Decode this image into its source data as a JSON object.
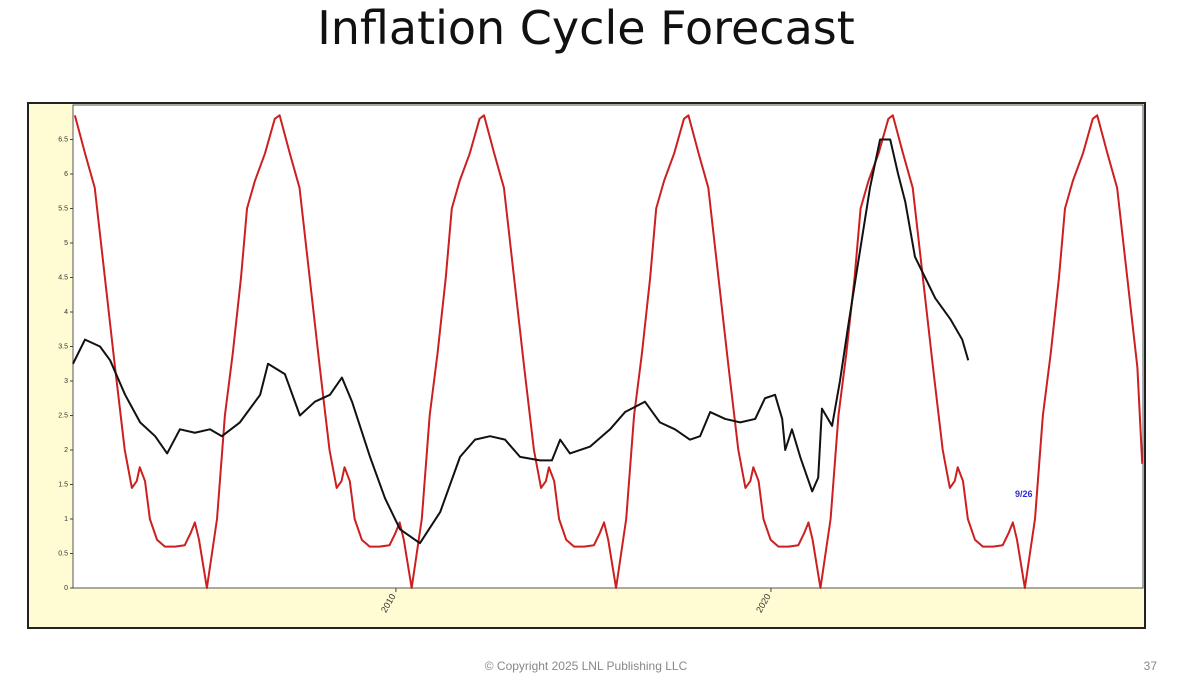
{
  "chart_data": {
    "type": "line",
    "title": "Inflation Cycle Forecast",
    "footer": "© Copyright 2025 LNL Publishing LLC",
    "page_number": "37",
    "annotation": "9/26",
    "xlim": [
      2001.39,
      2029.92
    ],
    "xticks": [
      2010,
      2020
    ],
    "ylim": [
      0,
      7
    ],
    "yticks": [
      0,
      0.5,
      1,
      1.5,
      2,
      2.5,
      3,
      3.5,
      4,
      4.5,
      5,
      5.5,
      6,
      6.5
    ],
    "series": [
      {
        "color": "#cc1f1f",
        "x": [
          2001.44,
          2001.71,
          2001.97,
          2002.24,
          2002.51,
          2002.77,
          2002.96,
          2003.09,
          2003.17,
          2003.31,
          2003.44,
          2003.63,
          2003.84,
          2004.11,
          2004.37,
          2004.53,
          2004.64,
          2004.75,
          2004.96,
          2005.23,
          2005.44,
          2005.65,
          2005.87,
          2006.03,
          2006.24,
          2006.51,
          2006.77,
          2006.9,
          2007.17,
          2007.43,
          2007.7,
          2007.97,
          2008.23,
          2008.42,
          2008.55,
          2008.63,
          2008.77,
          2008.9,
          2009.09,
          2009.3,
          2009.57,
          2009.83,
          2009.99,
          2010.1,
          2010.21,
          2010.42,
          2010.69,
          2010.9,
          2011.11,
          2011.33,
          2011.49,
          2011.7,
          2011.97,
          2012.23,
          2012.35,
          2012.62,
          2012.88,
          2013.15,
          2013.42,
          2013.68,
          2013.87,
          2014.0,
          2014.08,
          2014.22,
          2014.35,
          2014.54,
          2014.75,
          2015.02,
          2015.28,
          2015.44,
          2015.55,
          2015.66,
          2015.87,
          2016.14,
          2016.35,
          2016.56,
          2016.78,
          2016.94,
          2017.15,
          2017.42,
          2017.68,
          2017.8,
          2018.07,
          2018.33,
          2018.6,
          2018.87,
          2019.13,
          2019.32,
          2019.45,
          2019.53,
          2019.67,
          2019.8,
          2019.99,
          2020.2,
          2020.47,
          2020.73,
          2020.89,
          2021.0,
          2021.11,
          2021.32,
          2021.59,
          2021.8,
          2022.01,
          2022.23,
          2022.39,
          2022.6,
          2022.87,
          2023.13,
          2023.25,
          2023.52,
          2023.78,
          2024.05,
          2024.32,
          2024.58,
          2024.77,
          2024.9,
          2024.98,
          2025.12,
          2025.25,
          2025.44,
          2025.65,
          2025.92,
          2026.18,
          2026.34,
          2026.45,
          2026.56,
          2026.77,
          2027.04,
          2027.25,
          2027.46,
          2027.68,
          2027.84,
          2028.05,
          2028.32,
          2028.58,
          2028.7,
          2028.97,
          2029.23,
          2029.5,
          2029.77,
          2029.9
        ],
        "values": [
          6.85,
          6.3,
          5.8,
          4.5,
          3.2,
          2.0,
          1.45,
          1.55,
          1.75,
          1.55,
          1.0,
          0.7,
          0.6,
          0.6,
          0.62,
          0.8,
          0.95,
          0.7,
          0.0,
          1.0,
          2.5,
          3.4,
          4.5,
          5.5,
          5.9,
          6.3,
          6.8,
          6.85,
          6.3,
          5.8,
          4.5,
          3.2,
          2.0,
          1.45,
          1.55,
          1.75,
          1.55,
          1.0,
          0.7,
          0.6,
          0.6,
          0.62,
          0.8,
          0.95,
          0.7,
          0.0,
          1.0,
          2.5,
          3.4,
          4.5,
          5.5,
          5.9,
          6.3,
          6.8,
          6.85,
          6.3,
          5.8,
          4.5,
          3.2,
          2.0,
          1.45,
          1.55,
          1.75,
          1.55,
          1.0,
          0.7,
          0.6,
          0.6,
          0.62,
          0.8,
          0.95,
          0.7,
          0.0,
          1.0,
          2.5,
          3.4,
          4.5,
          5.5,
          5.9,
          6.3,
          6.8,
          6.85,
          6.3,
          5.8,
          4.5,
          3.2,
          2.0,
          1.45,
          1.55,
          1.75,
          1.55,
          1.0,
          0.7,
          0.6,
          0.6,
          0.62,
          0.8,
          0.95,
          0.7,
          0.0,
          1.0,
          2.5,
          3.4,
          4.5,
          5.5,
          5.9,
          6.3,
          6.8,
          6.85,
          6.3,
          5.8,
          4.5,
          3.2,
          2.0,
          1.45,
          1.55,
          1.75,
          1.55,
          1.0,
          0.7,
          0.6,
          0.6,
          0.62,
          0.8,
          0.95,
          0.7,
          0.0,
          1.0,
          2.5,
          3.4,
          4.5,
          5.5,
          5.9,
          6.3,
          6.8,
          6.85,
          6.3,
          5.8,
          4.5,
          3.2,
          1.8
        ]
      },
      {
        "color": "#111111",
        "x": [
          2001.39,
          2001.71,
          2002.11,
          2002.38,
          2002.78,
          2003.18,
          2003.58,
          2003.9,
          2004.24,
          2004.64,
          2005.04,
          2005.36,
          2005.84,
          2006.38,
          2006.59,
          2007.04,
          2007.44,
          2007.84,
          2008.24,
          2008.56,
          2008.83,
          2009.31,
          2009.71,
          2010.11,
          2010.64,
          2011.18,
          2011.71,
          2012.11,
          2012.51,
          2012.91,
          2013.31,
          2013.84,
          2014.16,
          2014.38,
          2014.64,
          2015.18,
          2015.71,
          2016.11,
          2016.64,
          2017.04,
          2017.44,
          2017.84,
          2018.11,
          2018.38,
          2018.78,
          2019.18,
          2019.58,
          2019.84,
          2020.11,
          2020.3,
          2020.38,
          2020.56,
          2020.78,
          2021.1,
          2021.26,
          2021.36,
          2021.63,
          2021.84,
          2022.06,
          2022.32,
          2022.64,
          2022.91,
          2023.18,
          2023.39,
          2023.58,
          2023.84,
          2024.11,
          2024.38,
          2024.78,
          2025.1,
          2025.26
        ],
        "values": [
          3.25,
          3.6,
          3.5,
          3.3,
          2.8,
          2.4,
          2.2,
          1.95,
          2.3,
          2.25,
          2.3,
          2.2,
          2.4,
          2.8,
          3.25,
          3.1,
          2.5,
          2.7,
          2.8,
          3.05,
          2.7,
          1.9,
          1.3,
          0.85,
          0.65,
          1.1,
          1.9,
          2.15,
          2.2,
          2.15,
          1.9,
          1.85,
          1.85,
          2.15,
          1.95,
          2.05,
          2.3,
          2.55,
          2.7,
          2.4,
          2.3,
          2.15,
          2.2,
          2.55,
          2.45,
          2.4,
          2.45,
          2.75,
          2.8,
          2.45,
          2.0,
          2.3,
          1.9,
          1.4,
          1.6,
          2.6,
          2.35,
          3.0,
          3.8,
          4.7,
          5.8,
          6.5,
          6.5,
          6.0,
          5.6,
          4.8,
          4.5,
          4.2,
          3.9,
          3.6,
          3.3
        ]
      }
    ]
  }
}
